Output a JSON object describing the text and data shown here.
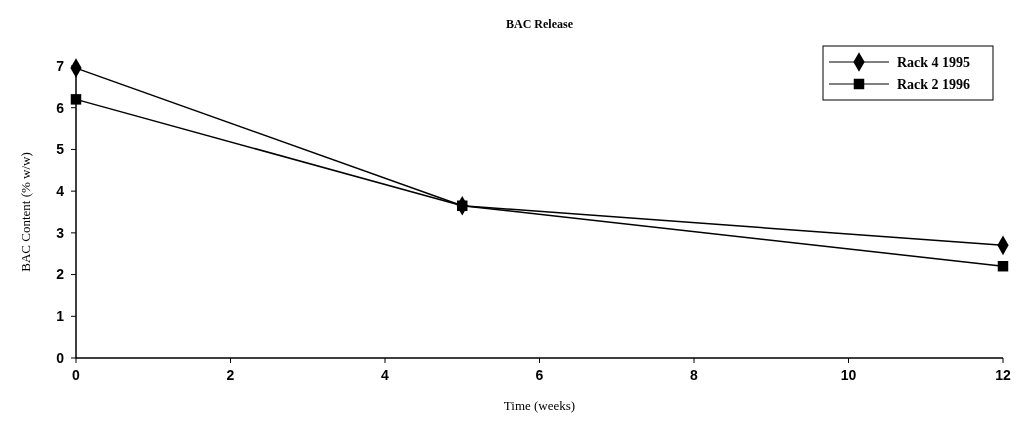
{
  "chart_data": {
    "type": "line",
    "title": "BAC Release",
    "xlabel": "Time (weeks)",
    "ylabel": "BAC Content (% w/w)",
    "xlim": [
      0,
      12
    ],
    "xticks": [
      0,
      2,
      4,
      6,
      8,
      10,
      12
    ],
    "ylim": [
      0,
      7
    ],
    "yticks": [
      0,
      1,
      2,
      3,
      4,
      5,
      6,
      7
    ],
    "legend": "top right",
    "grid": false,
    "series": [
      {
        "name": "Rack 4 1995",
        "color": "#000000",
        "marker": "diamond",
        "x": [
          0,
          5,
          12
        ],
        "values": [
          6.95,
          3.65,
          2.7
        ]
      },
      {
        "name": "Rack 2 1996",
        "color": "#000000",
        "marker": "square",
        "x": [
          0,
          5,
          12
        ],
        "values": [
          6.2,
          3.65,
          2.2
        ]
      }
    ]
  }
}
